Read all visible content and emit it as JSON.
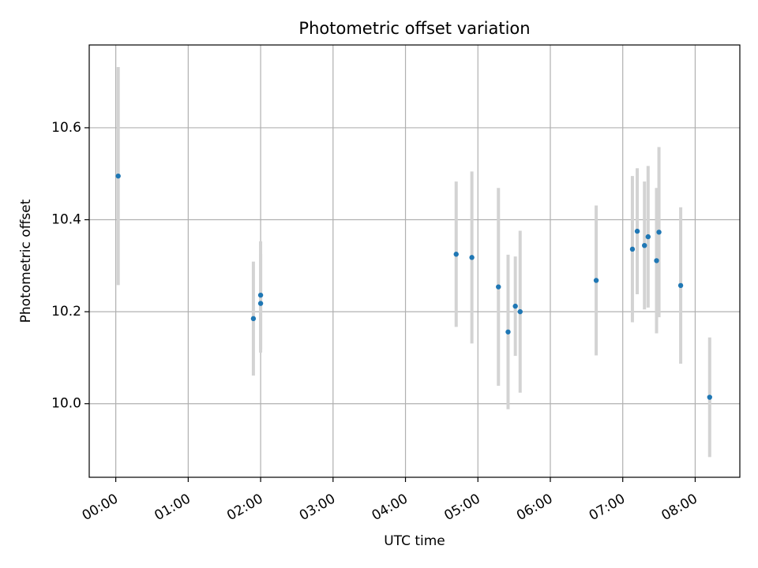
{
  "chart_data": {
    "type": "scatter",
    "title": "Photometric offset variation",
    "xlabel": "UTC time",
    "ylabel": "Photometric offset",
    "x_ticks": [
      "00:00",
      "01:00",
      "02:00",
      "03:00",
      "04:00",
      "05:00",
      "06:00",
      "07:00",
      "08:00"
    ],
    "y_ticks": [
      "10.0",
      "10.2",
      "10.4",
      "10.6"
    ],
    "xlim": [
      "-00:22",
      "08:37"
    ],
    "ylim": [
      9.84,
      10.78
    ],
    "grid": true,
    "colors": {
      "point": "#1f77b4",
      "errorbar": "#d3d3d3",
      "grid": "#b0b0b0"
    },
    "points": [
      {
        "x": "00:02",
        "y": 10.495,
        "err": 0.237
      },
      {
        "x": "01:54",
        "y": 10.185,
        "err": 0.124
      },
      {
        "x": "02:00",
        "y": 10.236,
        "err": 0.117
      },
      {
        "x": "02:00",
        "y": 10.218,
        "err": 0.107
      },
      {
        "x": "04:42",
        "y": 10.325,
        "err": 0.158
      },
      {
        "x": "04:55",
        "y": 10.318,
        "err": 0.187
      },
      {
        "x": "05:17",
        "y": 10.254,
        "err": 0.215
      },
      {
        "x": "05:25",
        "y": 10.156,
        "err": 0.168
      },
      {
        "x": "05:31",
        "y": 10.212,
        "err": 0.108
      },
      {
        "x": "05:35",
        "y": 10.2,
        "err": 0.176
      },
      {
        "x": "06:38",
        "y": 10.268,
        "err": 0.163
      },
      {
        "x": "07:08",
        "y": 10.336,
        "err": 0.159
      },
      {
        "x": "07:12",
        "y": 10.375,
        "err": 0.137
      },
      {
        "x": "07:18",
        "y": 10.344,
        "err": 0.139
      },
      {
        "x": "07:21",
        "y": 10.363,
        "err": 0.154
      },
      {
        "x": "07:28",
        "y": 10.311,
        "err": 0.158
      },
      {
        "x": "07:30",
        "y": 10.373,
        "err": 0.185
      },
      {
        "x": "07:48",
        "y": 10.257,
        "err": 0.17
      },
      {
        "x": "08:12",
        "y": 10.014,
        "err": 0.13
      }
    ]
  }
}
